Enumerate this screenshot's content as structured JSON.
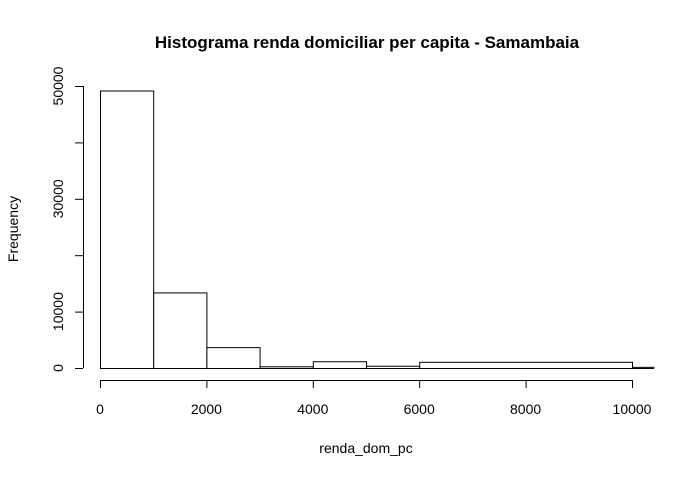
{
  "chart_data": {
    "type": "histogram",
    "title": "Histograma renda domiciliar per capita - Samambaia",
    "xlabel": "renda_dom_pc",
    "ylabel": "Frequency",
    "bins": [
      {
        "start": 0,
        "end": 1000,
        "count": 49200
      },
      {
        "start": 1000,
        "end": 2000,
        "count": 13400
      },
      {
        "start": 2000,
        "end": 3000,
        "count": 3700
      },
      {
        "start": 3000,
        "end": 4000,
        "count": 300
      },
      {
        "start": 4000,
        "end": 5000,
        "count": 1200
      },
      {
        "start": 5000,
        "end": 6000,
        "count": 400
      },
      {
        "start": 6000,
        "end": 10000,
        "count": 1100
      },
      {
        "start": 10000,
        "end": 10400,
        "count": 200
      }
    ],
    "xticks": [
      0,
      2000,
      4000,
      6000,
      8000,
      10000
    ],
    "xtick_labels": [
      "0",
      "2000",
      "4000",
      "6000",
      "8000",
      "10000"
    ],
    "yticks": [
      0,
      10000,
      30000,
      50000
    ],
    "ytick_labels": [
      "0",
      "10000",
      "30000",
      "50000"
    ],
    "xlim": [
      0,
      10400
    ],
    "ylim": [
      0,
      50000
    ],
    "grid": false
  }
}
